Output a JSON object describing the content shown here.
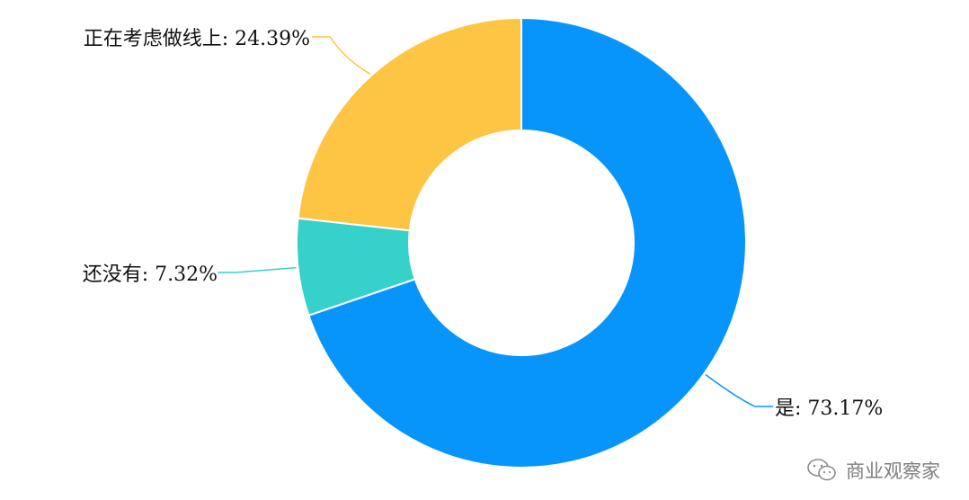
{
  "chart_data": {
    "type": "pie",
    "subtype": "donut",
    "slices": [
      {
        "label": "是",
        "value": 73.17,
        "value_text": "73.17%",
        "color": "#0895fb"
      },
      {
        "label": "还没有",
        "value": 7.32,
        "value_text": "7.32%",
        "color": "#36d1ca"
      },
      {
        "label": "正在考虑做线上",
        "value": 24.39,
        "value_text": "24.39%",
        "color": "#fec443"
      }
    ],
    "start_angle": "top",
    "direction": "clockwise",
    "legend": "none"
  },
  "watermark": {
    "text": "商业观察家",
    "icon": "wechat-icon"
  }
}
